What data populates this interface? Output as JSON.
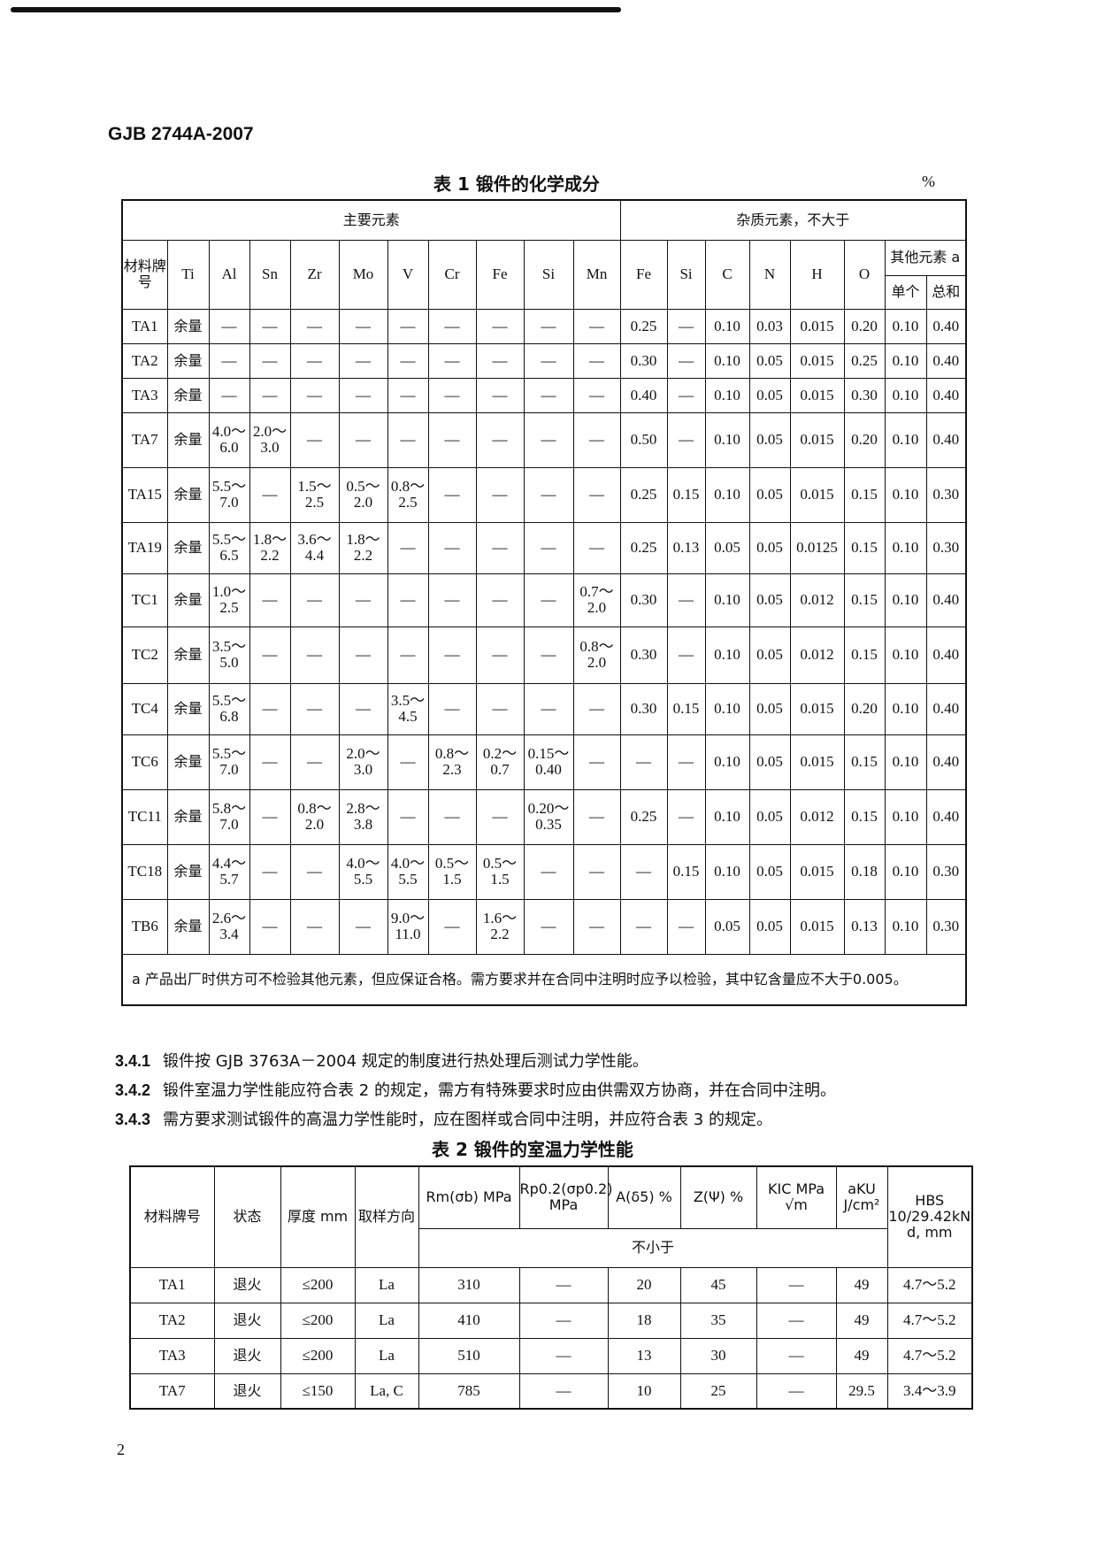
{
  "header": "GJB 2744A-2007",
  "table1": {
    "title": "表 1  锻件的化学成分",
    "unit": "%",
    "group_main": "主要元素",
    "group_impurity": "杂质元素，不大于",
    "col_grade": "材料牌号",
    "main_cols": [
      "Ti",
      "Al",
      "Sn",
      "Zr",
      "Mo",
      "V",
      "Cr",
      "Fe",
      "Si",
      "Mn"
    ],
    "imp_cols": [
      "Fe",
      "Si",
      "C",
      "N",
      "H",
      "O"
    ],
    "other": "其他元素 a",
    "other_single": "单个",
    "other_total": "总和",
    "rows": [
      [
        "TA1",
        "余量",
        "—",
        "—",
        "—",
        "—",
        "—",
        "—",
        "—",
        "—",
        "—",
        "0.25",
        "—",
        "0.10",
        "0.03",
        "0.015",
        "0.20",
        "0.10",
        "0.40"
      ],
      [
        "TA2",
        "余量",
        "—",
        "—",
        "—",
        "—",
        "—",
        "—",
        "—",
        "—",
        "—",
        "0.30",
        "—",
        "0.10",
        "0.05",
        "0.015",
        "0.25",
        "0.10",
        "0.40"
      ],
      [
        "TA3",
        "余量",
        "—",
        "—",
        "—",
        "—",
        "—",
        "—",
        "—",
        "—",
        "—",
        "0.40",
        "—",
        "0.10",
        "0.05",
        "0.015",
        "0.30",
        "0.10",
        "0.40"
      ],
      [
        "TA7",
        "余量",
        "4.0～6.0",
        "2.0～3.0",
        "—",
        "—",
        "—",
        "—",
        "—",
        "—",
        "—",
        "0.50",
        "—",
        "0.10",
        "0.05",
        "0.015",
        "0.20",
        "0.10",
        "0.40"
      ],
      [
        "TA15",
        "余量",
        "5.5～7.0",
        "—",
        "1.5～2.5",
        "0.5～2.0",
        "0.8～2.5",
        "—",
        "—",
        "—",
        "—",
        "0.25",
        "0.15",
        "0.10",
        "0.05",
        "0.015",
        "0.15",
        "0.10",
        "0.30"
      ],
      [
        "TA19",
        "余量",
        "5.5～6.5",
        "1.8～2.2",
        "3.6～4.4",
        "1.8～2.2",
        "—",
        "—",
        "—",
        "—",
        "—",
        "0.25",
        "0.13",
        "0.05",
        "0.05",
        "0.0125",
        "0.15",
        "0.10",
        "0.30"
      ],
      [
        "TC1",
        "余量",
        "1.0～2.5",
        "—",
        "—",
        "—",
        "—",
        "—",
        "—",
        "—",
        "0.7～2.0",
        "0.30",
        "—",
        "0.10",
        "0.05",
        "0.012",
        "0.15",
        "0.10",
        "0.40"
      ],
      [
        "TC2",
        "余量",
        "3.5～5.0",
        "—",
        "—",
        "—",
        "—",
        "—",
        "—",
        "—",
        "0.8～2.0",
        "0.30",
        "—",
        "0.10",
        "0.05",
        "0.012",
        "0.15",
        "0.10",
        "0.40"
      ],
      [
        "TC4",
        "余量",
        "5.5～6.8",
        "—",
        "—",
        "—",
        "3.5～4.5",
        "—",
        "—",
        "—",
        "—",
        "0.30",
        "0.15",
        "0.10",
        "0.05",
        "0.015",
        "0.20",
        "0.10",
        "0.40"
      ],
      [
        "TC6",
        "余量",
        "5.5～7.0",
        "—",
        "—",
        "2.0～3.0",
        "—",
        "0.8～2.3",
        "0.2～0.7",
        "0.15～0.40",
        "—",
        "—",
        "—",
        "0.10",
        "0.05",
        "0.015",
        "0.15",
        "0.10",
        "0.40"
      ],
      [
        "TC11",
        "余量",
        "5.8～7.0",
        "—",
        "0.8～2.0",
        "2.8～3.8",
        "—",
        "—",
        "—",
        "0.20～0.35",
        "—",
        "0.25",
        "—",
        "0.10",
        "0.05",
        "0.012",
        "0.15",
        "0.10",
        "0.40"
      ],
      [
        "TC18",
        "余量",
        "4.4～5.7",
        "—",
        "—",
        "4.0～5.5",
        "4.0～5.5",
        "0.5～1.5",
        "0.5～1.5",
        "—",
        "—",
        "—",
        "0.15",
        "0.10",
        "0.05",
        "0.015",
        "0.18",
        "0.10",
        "0.30"
      ],
      [
        "TB6",
        "余量",
        "2.6～3.4",
        "—",
        "—",
        "—",
        "9.0～11.0",
        "—",
        "1.6～2.2",
        "—",
        "—",
        "—",
        "—",
        "0.05",
        "0.05",
        "0.015",
        "0.13",
        "0.10",
        "0.30"
      ]
    ],
    "footnote": "a  产品出厂时供方可不检验其他元素，但应保证合格。需方要求并在合同中注明时应予以检验，其中钇含量应不大于0.005。"
  },
  "paragraphs": [
    {
      "num": "3.4.1",
      "text": "锻件按 GJB 3763A－2004 规定的制度进行热处理后测试力学性能。"
    },
    {
      "num": "3.4.2",
      "text": "锻件室温力学性能应符合表 2 的规定，需方有特殊要求时应由供需双方协商，并在合同中注明。"
    },
    {
      "num": "3.4.3",
      "text": "需方要求测试锻件的高温力学性能时，应在图样或合同中注明，并应符合表 3 的规定。"
    }
  ],
  "table2": {
    "title": "表 2  锻件的室温力学性能",
    "headers": [
      "材料牌号",
      "状态",
      "厚度 mm",
      "取样方向",
      "Rm(σb) MPa",
      "Rp0.2(σp0.2) MPa",
      "A(δ5) %",
      "Z(Ψ) %",
      "KIC MPa √m",
      "aKU J/cm²",
      "HBS 10/29.42kN d, mm"
    ],
    "min_label": "不小于",
    "rows": [
      [
        "TA1",
        "退火",
        "≤200",
        "La",
        "310",
        "—",
        "20",
        "45",
        "—",
        "49",
        "4.7～5.2"
      ],
      [
        "TA2",
        "退火",
        "≤200",
        "La",
        "410",
        "—",
        "18",
        "35",
        "—",
        "49",
        "4.7～5.2"
      ],
      [
        "TA3",
        "退火",
        "≤200",
        "La",
        "510",
        "—",
        "13",
        "30",
        "—",
        "49",
        "4.7～5.2"
      ],
      [
        "TA7",
        "退火",
        "≤150",
        "La, C",
        "785",
        "—",
        "10",
        "25",
        "—",
        "29.5",
        "3.4～3.9"
      ]
    ]
  },
  "page_number": "2"
}
